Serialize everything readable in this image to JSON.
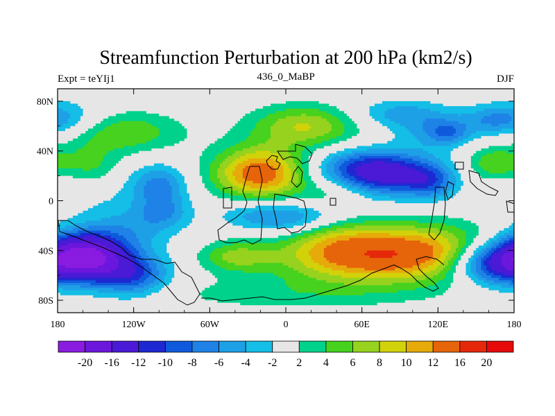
{
  "chart_data": {
    "type": "heatmap",
    "title": "Streamfunction Perturbation at 200 hPa (km2/s)",
    "left_string": "Expt = teYIj1",
    "center_string": "436_0_MaBP",
    "right_string": "DJF",
    "x_range": [
      -180,
      180
    ],
    "y_range": [
      -90,
      90
    ],
    "x_ticks": [
      {
        "value": -180,
        "label": "180"
      },
      {
        "value": -120,
        "label": "120W"
      },
      {
        "value": -60,
        "label": "60W"
      },
      {
        "value": 0,
        "label": "0"
      },
      {
        "value": 60,
        "label": "60E"
      },
      {
        "value": 120,
        "label": "120E"
      },
      {
        "value": 180,
        "label": "180"
      }
    ],
    "y_ticks": [
      {
        "value": 80,
        "label": "80N"
      },
      {
        "value": 40,
        "label": "40N"
      },
      {
        "value": 0,
        "label": "0"
      },
      {
        "value": -40,
        "label": "40S"
      },
      {
        "value": -80,
        "label": "80S"
      }
    ],
    "contour_levels": [
      -20,
      -16,
      -12,
      -10,
      -8,
      -6,
      -4,
      -2,
      2,
      4,
      6,
      8,
      10,
      12,
      16,
      20
    ],
    "level_labels": [
      "-20",
      "-16",
      "-12",
      "-10",
      "-8",
      "-6",
      "-4",
      "-2",
      "2",
      "4",
      "6",
      "8",
      "10",
      "12",
      "16",
      "20"
    ],
    "colors": [
      "#8a1be0",
      "#6b17dc",
      "#4a1ad6",
      "#1e28d2",
      "#0f5adc",
      "#1e82e6",
      "#1ea0e6",
      "#14bee6",
      "#e6e6e6",
      "#00d28c",
      "#46d21e",
      "#96d21e",
      "#d2d20a",
      "#e6aa0a",
      "#e6640a",
      "#e6280a",
      "#e60a0a"
    ],
    "field_extrema_approx": [
      {
        "lon": -160,
        "lat": -45,
        "value": -22
      },
      {
        "lon": 80,
        "lat": 20,
        "value": -11
      },
      {
        "lon": 160,
        "lat": -50,
        "value": -11
      },
      {
        "lon": 20,
        "lat": 58,
        "value": 7
      },
      {
        "lon": -20,
        "lat": 21,
        "value": 13
      },
      {
        "lon": 92,
        "lat": -40,
        "value": 14
      },
      {
        "lon": 20,
        "lat": -50,
        "value": 7
      }
    ]
  }
}
